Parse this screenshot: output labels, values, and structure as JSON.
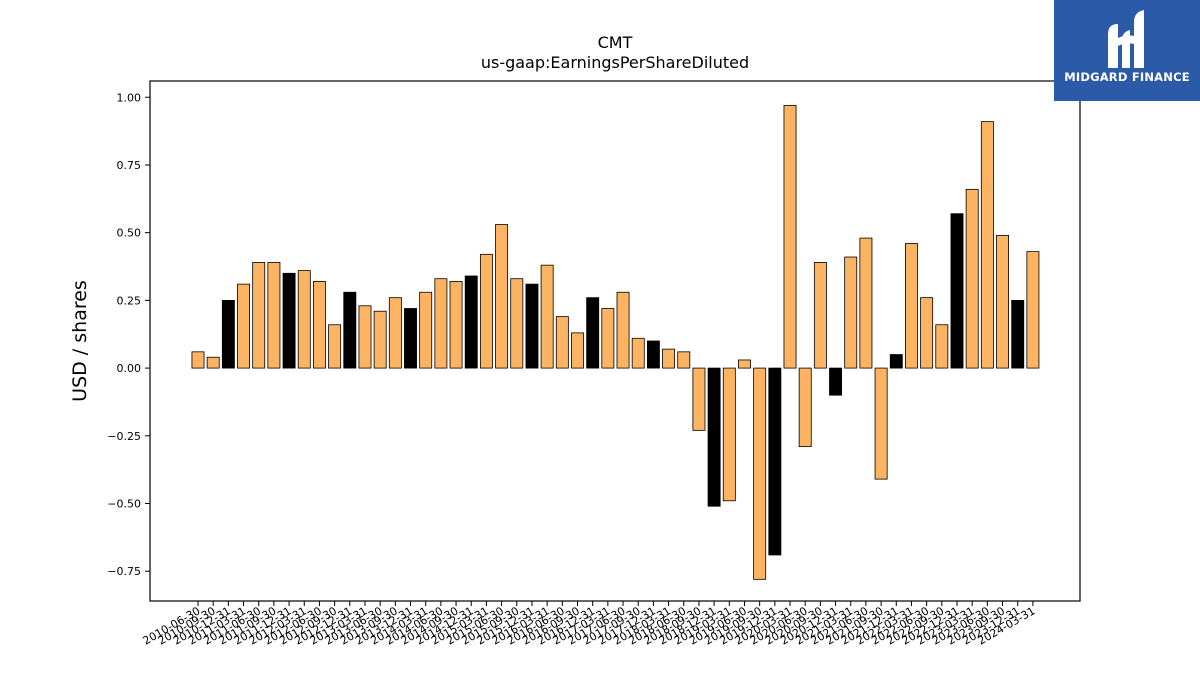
{
  "logo": {
    "name": "MIDGARD FINANCE",
    "background": "#2b5aa8"
  },
  "chart_data": {
    "type": "bar",
    "title": "CMT",
    "subtitle": "us-gaap:EarningsPerShareDiluted",
    "xlabel": "",
    "ylabel": "USD / shares",
    "ylim": [
      -0.86,
      1.06
    ],
    "yticks": [
      -0.75,
      -0.5,
      -0.25,
      0.0,
      0.25,
      0.5,
      0.75,
      1.0
    ],
    "ytick_labels": [
      "−0.75",
      "−0.50",
      "−0.25",
      "0.00",
      "0.25",
      "0.50",
      "0.75",
      "1.00"
    ],
    "grid": false,
    "legend": "none",
    "colors": {
      "orange": "#fdb462",
      "black": "#000000",
      "edge": "#000000"
    },
    "categories": [
      "2010-06-30",
      "2010-09-30",
      "2010-12-31",
      "2011-03-31",
      "2011-06-30",
      "2011-09-30",
      "2011-12-31",
      "2012-03-31",
      "2012-06-30",
      "2012-09-30",
      "2012-12-31",
      "2013-03-31",
      "2013-06-30",
      "2013-09-30",
      "2013-12-31",
      "2014-03-31",
      "2014-06-30",
      "2014-09-30",
      "2014-12-31",
      "2015-03-31",
      "2015-06-30",
      "2015-09-30",
      "2015-12-31",
      "2016-03-31",
      "2016-06-30",
      "2016-09-30",
      "2016-12-31",
      "2017-03-31",
      "2017-06-30",
      "2017-09-30",
      "2017-12-31",
      "2018-03-31",
      "2018-06-30",
      "2018-09-30",
      "2018-12-31",
      "2019-03-31",
      "2019-06-30",
      "2019-09-30",
      "2019-12-31",
      "2020-03-31",
      "2020-06-30",
      "2020-09-30",
      "2020-12-31",
      "2021-03-31",
      "2021-06-30",
      "2021-09-30",
      "2021-12-31",
      "2022-03-31",
      "2022-06-30",
      "2022-09-30",
      "2022-12-31",
      "2023-03-31",
      "2023-06-30",
      "2023-09-30",
      "2023-12-31",
      "2024-03-31"
    ],
    "values": [
      0.06,
      0.04,
      0.25,
      0.31,
      0.39,
      0.39,
      0.35,
      0.36,
      0.32,
      0.16,
      0.28,
      0.23,
      0.21,
      0.26,
      0.22,
      0.28,
      0.33,
      0.32,
      0.34,
      0.42,
      0.53,
      0.33,
      0.31,
      0.38,
      0.19,
      0.13,
      0.26,
      0.22,
      0.28,
      0.11,
      0.1,
      0.07,
      0.06,
      -0.23,
      -0.51,
      -0.49,
      0.03,
      -0.78,
      -0.69,
      0.97,
      -0.29,
      0.39,
      -0.1,
      0.41,
      0.48,
      -0.41,
      0.05,
      0.46,
      0.26,
      0.16,
      0.57,
      0.66,
      0.91,
      0.49,
      0.25,
      0.43
    ],
    "bar_colors": [
      "orange",
      "orange",
      "black",
      "orange",
      "orange",
      "orange",
      "black",
      "orange",
      "orange",
      "orange",
      "black",
      "orange",
      "orange",
      "orange",
      "black",
      "orange",
      "orange",
      "orange",
      "black",
      "orange",
      "orange",
      "orange",
      "black",
      "orange",
      "orange",
      "orange",
      "black",
      "orange",
      "orange",
      "orange",
      "black",
      "orange",
      "orange",
      "orange",
      "black",
      "orange",
      "orange",
      "orange",
      "black",
      "orange",
      "orange",
      "orange",
      "black",
      "orange",
      "orange",
      "orange",
      "black",
      "orange",
      "orange",
      "orange",
      "black",
      "orange",
      "orange",
      "orange",
      "black",
      "orange"
    ]
  }
}
